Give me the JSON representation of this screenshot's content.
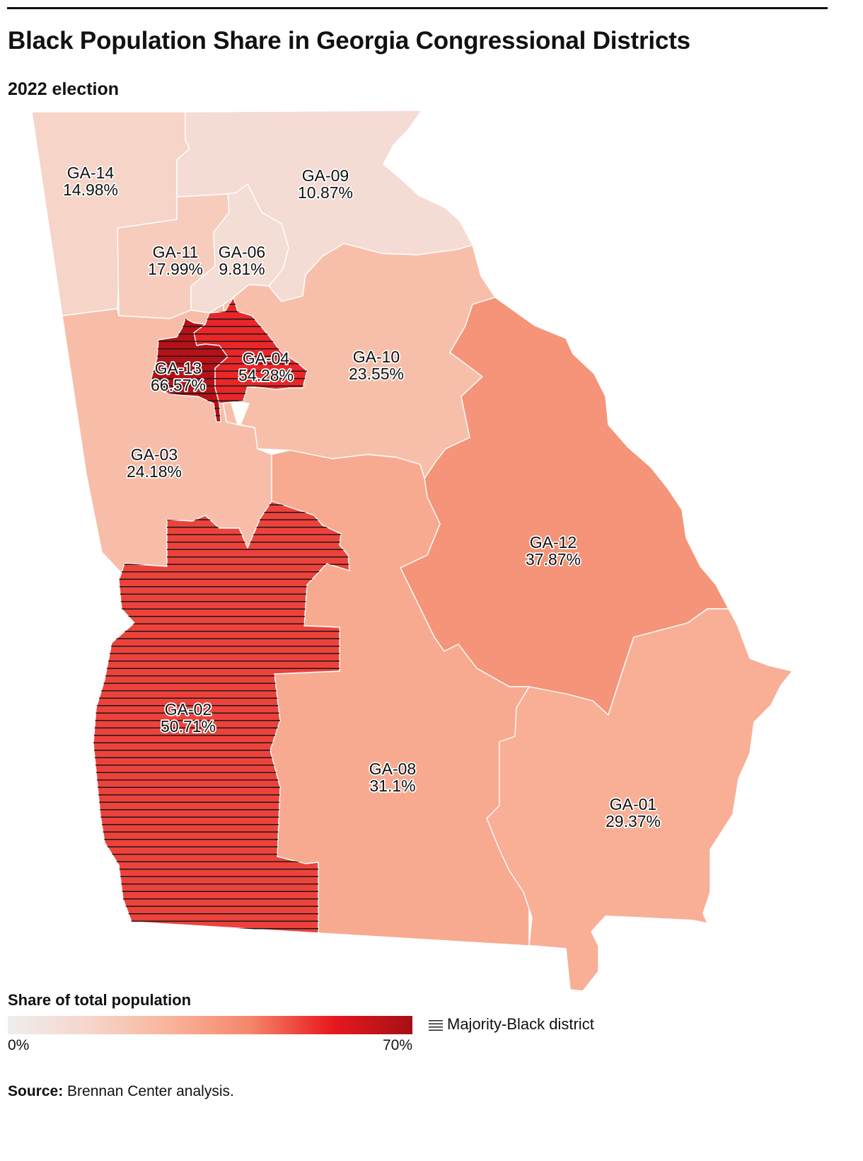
{
  "title": "Black Population Share in Georgia Congressional Districts",
  "subtitle": "2022 election",
  "legend": {
    "title": "Share of total population",
    "min_label": "0%",
    "max_label": "70%",
    "min_value": 0,
    "max_value": 70,
    "hatch_label": "Majority-Black district",
    "colors": [
      "#eeeeee",
      "#f6d6cb",
      "#f8b49b",
      "#f4866a",
      "#e8191f",
      "#a50f15"
    ]
  },
  "source": {
    "label": "Source:",
    "text": "Brennan Center analysis."
  },
  "districts": [
    {
      "id": "GA-01",
      "name": "GA-01",
      "value_label": "29.37%",
      "value": 29.37,
      "majority_black": false
    },
    {
      "id": "GA-02",
      "name": "GA-02",
      "value_label": "50.71%",
      "value": 50.71,
      "majority_black": true
    },
    {
      "id": "GA-03",
      "name": "GA-03",
      "value_label": "24.18%",
      "value": 24.18,
      "majority_black": false
    },
    {
      "id": "GA-04",
      "name": "GA-04",
      "value_label": "54.28%",
      "value": 54.28,
      "majority_black": true
    },
    {
      "id": "GA-06",
      "name": "GA-06",
      "value_label": "9.81%",
      "value": 9.81,
      "majority_black": false
    },
    {
      "id": "GA-08",
      "name": "GA-08",
      "value_label": "31.1%",
      "value": 31.1,
      "majority_black": false
    },
    {
      "id": "GA-09",
      "name": "GA-09",
      "value_label": "10.87%",
      "value": 10.87,
      "majority_black": false
    },
    {
      "id": "GA-10",
      "name": "GA-10",
      "value_label": "23.55%",
      "value": 23.55,
      "majority_black": false
    },
    {
      "id": "GA-11",
      "name": "GA-11",
      "value_label": "17.99%",
      "value": 17.99,
      "majority_black": false
    },
    {
      "id": "GA-12",
      "name": "GA-12",
      "value_label": "37.87%",
      "value": 37.87,
      "majority_black": false
    },
    {
      "id": "GA-13",
      "name": "GA-13",
      "value_label": "66.57%",
      "value": 66.57,
      "majority_black": true
    },
    {
      "id": "GA-14",
      "name": "GA-14",
      "value_label": "14.98%",
      "value": 14.98,
      "majority_black": false
    }
  ]
}
